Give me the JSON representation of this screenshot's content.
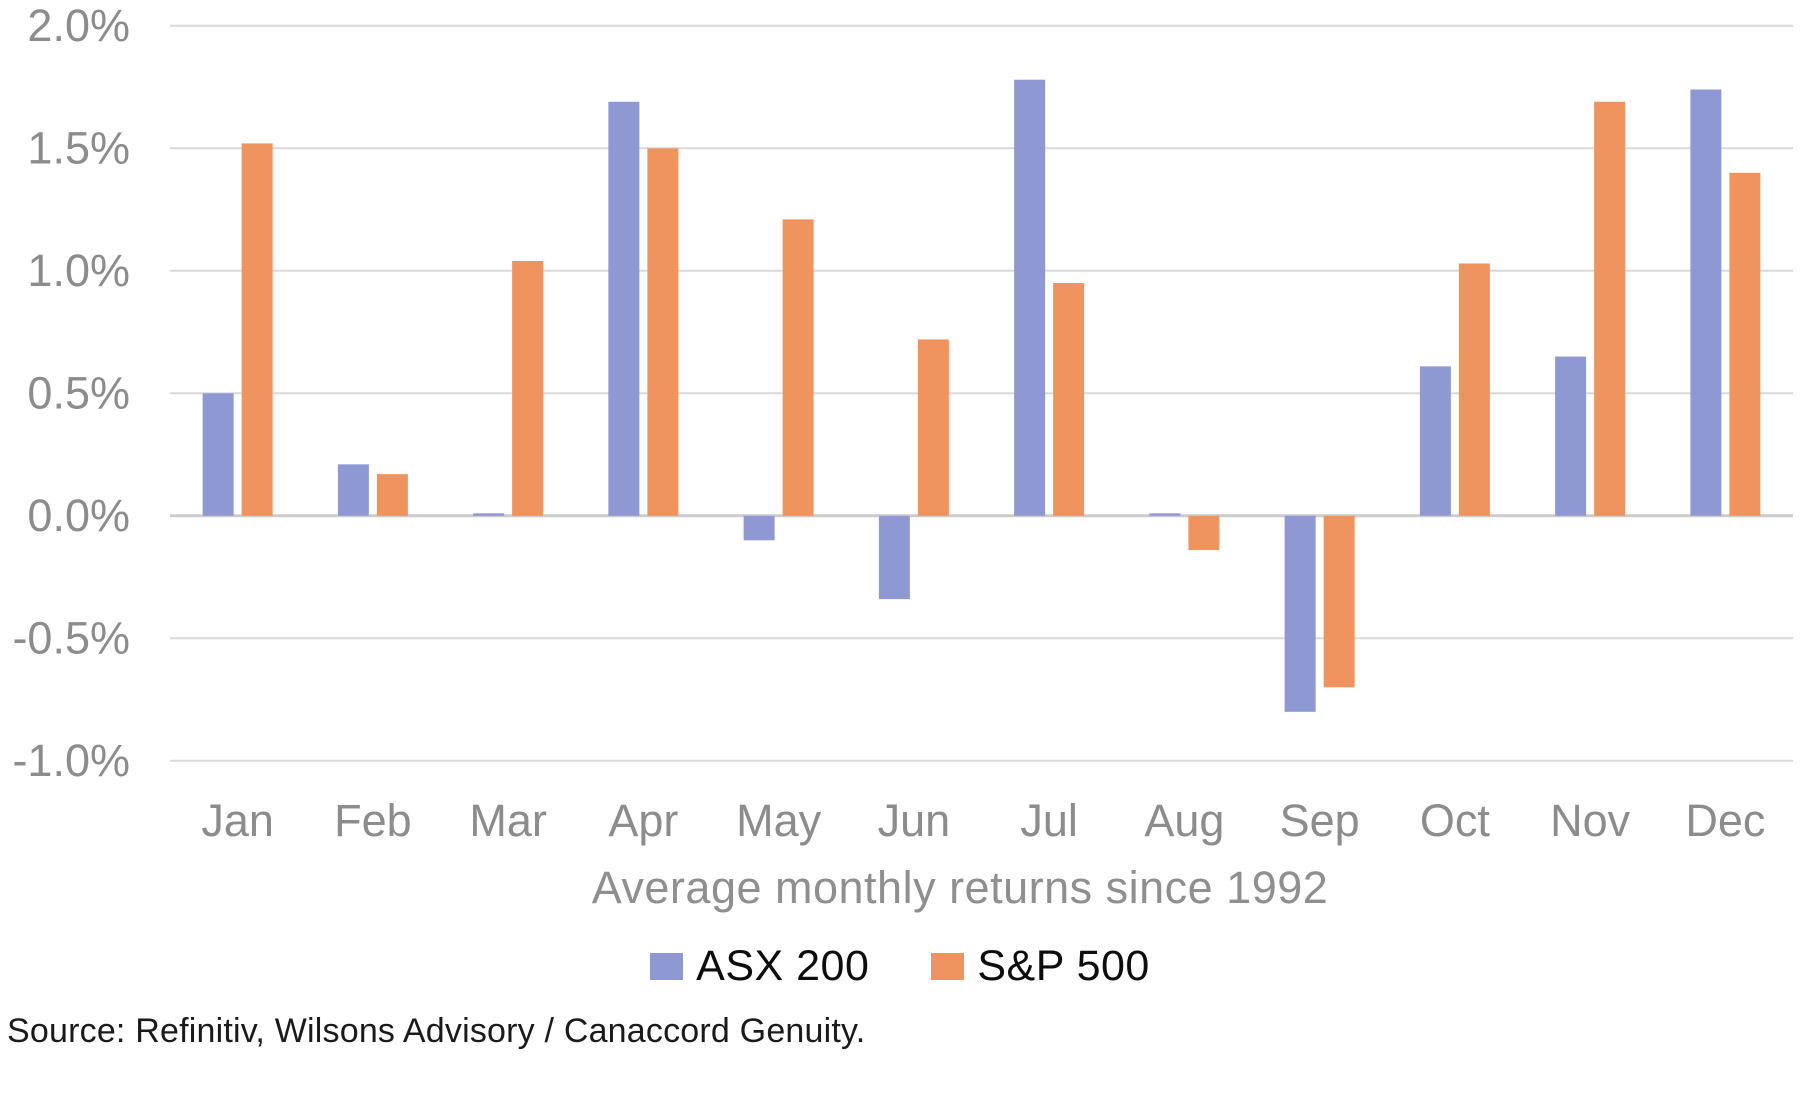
{
  "chart_data": {
    "type": "bar",
    "title": "",
    "xlabel": "Average monthly returns since 1992",
    "ylabel": "",
    "unit": "%",
    "categories": [
      "Jan",
      "Feb",
      "Mar",
      "Apr",
      "May",
      "Jun",
      "Jul",
      "Aug",
      "Sep",
      "Oct",
      "Nov",
      "Dec"
    ],
    "series": [
      {
        "name": "ASX 200",
        "color": "#8e99d3",
        "values": [
          0.5,
          0.21,
          0.01,
          1.69,
          -0.1,
          -0.34,
          1.78,
          0.01,
          -0.8,
          0.61,
          0.65,
          1.74
        ]
      },
      {
        "name": "S&P 500",
        "color": "#f0945f",
        "values": [
          1.52,
          0.17,
          1.04,
          1.5,
          1.21,
          0.72,
          0.95,
          -0.14,
          -0.7,
          1.03,
          1.69,
          1.4
        ]
      }
    ],
    "yticks": [
      2.0,
      1.5,
      1.0,
      0.5,
      0.0,
      -0.5,
      -1.0
    ],
    "ytick_labels": [
      "2.0%",
      "1.5%",
      "1.0%",
      "0.5%",
      "0.0%",
      "-0.5%",
      "-1.0%"
    ],
    "ylim": [
      -1.0,
      2.0
    ],
    "grid": "horizontal",
    "legend_position": "bottom",
    "gridline_color": "#d9d9d9",
    "zero_line_color": "#cccccc",
    "tick_label_color": "#8c8c8c"
  },
  "footer": {
    "source": "Source: Refinitiv, Wilsons Advisory / Canaccord Genuity."
  }
}
